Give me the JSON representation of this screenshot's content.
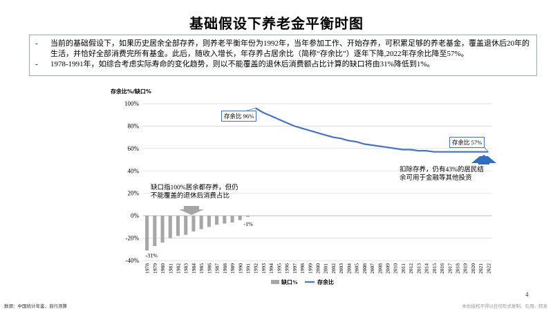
{
  "title": "基础假设下养老金平衡时图",
  "bullets": [
    "当前的基础假设下，如果历史居余全部存养，则养老平衡年份为1992年，当年参加工作、开始存养，可积累足够的养老基金，覆盖退休后20年的生活，并恰好全部消费完所有基金。此后，随收入增长，年存养占居余比（简称“存余比”）逐年下降,2022年存余比降至57%。",
    "1978-1991年，如综合考虑实际寿命的变化趋势，则以不能覆盖的退休后消费额占比计算的缺口将由31%降低到1%。"
  ],
  "annotations": {
    "gap_note": "缺口指100%居余都存养，但仍不能覆盖的退休后消费占比",
    "surplus_note": "扣除存养，仍有43%的居民结余可用于金融等其他投资",
    "callout_peak": "存余比 96%",
    "callout_end": "存余比 57%",
    "label_first": "-31%",
    "label_last": "-1%"
  },
  "footer": {
    "source": "数源：中国统计年鉴，自行测算",
    "notice": "本份授权不得以任何形式复制、引用、转发",
    "page": "4"
  },
  "chart_data": {
    "type": "bar+line",
    "ylabel": "存余比%/缺口%",
    "ylim": [
      -40,
      100
    ],
    "yticks": [
      "-40%",
      "-20%",
      "0%",
      "20%",
      "40%",
      "60%",
      "80%",
      "100%"
    ],
    "years": [
      "1978",
      "1979",
      "1980",
      "1981",
      "1982",
      "1983",
      "1984",
      "1985",
      "1986",
      "1987",
      "1988",
      "1989",
      "1990",
      "1991",
      "1992",
      "1993",
      "1994",
      "1995",
      "1996",
      "1997",
      "1998",
      "1999",
      "2000",
      "2001",
      "2002",
      "2003",
      "2004",
      "2005",
      "2006",
      "2007",
      "2008",
      "2009",
      "2010",
      "2011",
      "2012",
      "2013",
      "2014",
      "2015",
      "2016",
      "2017",
      "2018",
      "2019",
      "2020",
      "2021",
      "2022"
    ],
    "series": [
      {
        "name": "缺口%",
        "color": "#a6a6a6",
        "values": [
          -31,
          -27,
          -24,
          -20,
          -18,
          -17,
          -14,
          -12,
          -10,
          -8,
          -7,
          -6,
          -4,
          -1
        ]
      },
      {
        "name": "存余比",
        "color": "#4472c4",
        "start_year": "1992",
        "values": [
          96,
          92,
          89,
          86,
          83,
          80,
          78,
          76,
          74,
          72,
          70,
          69,
          67,
          66,
          64,
          63,
          62,
          61,
          60,
          59,
          59,
          58,
          58,
          57,
          57,
          57,
          57,
          57,
          57,
          57,
          57
        ]
      }
    ],
    "grid": true,
    "legend": "bottom"
  }
}
